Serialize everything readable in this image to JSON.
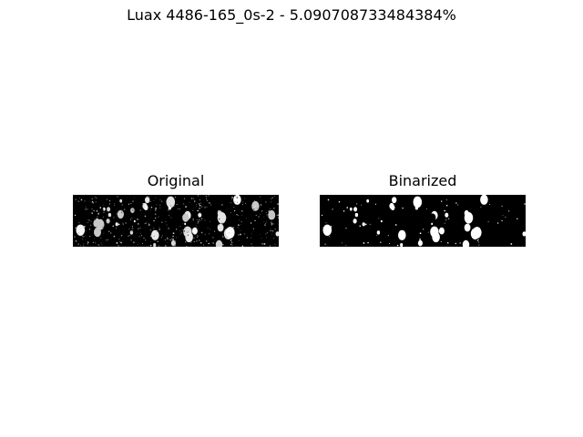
{
  "figure": {
    "title": "Luax 4486-165_0s-2 - 5.090708733484384%"
  },
  "panels": [
    {
      "title": "Original"
    },
    {
      "title": "Binarized"
    }
  ]
}
